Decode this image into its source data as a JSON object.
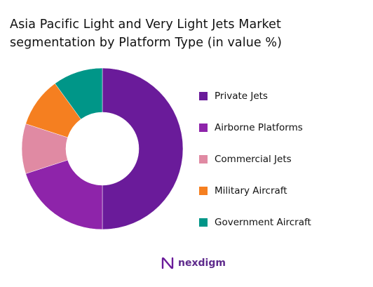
{
  "title": "Asia Pacific Light and Very Light Jets Market segmentation by Platform Type (in value %)",
  "brand": {
    "name": "nexdigm",
    "color": "#5e2a8c"
  },
  "chart_data": {
    "type": "pie",
    "variant": "donut",
    "title": "Asia Pacific Light and Very Light Jets Market segmentation by Platform Type (in value %)",
    "categories": [
      "Private Jets",
      "Airborne Platforms",
      "Commercial Jets",
      "Military Aircraft",
      "Government Aircraft"
    ],
    "values": [
      50,
      20,
      10,
      10,
      10
    ],
    "colors": [
      "#6a1b9a",
      "#8e24aa",
      "#e08aa3",
      "#f57f20",
      "#009688"
    ],
    "start_angle_deg": 0,
    "direction": "clockwise",
    "legend_position": "right"
  }
}
